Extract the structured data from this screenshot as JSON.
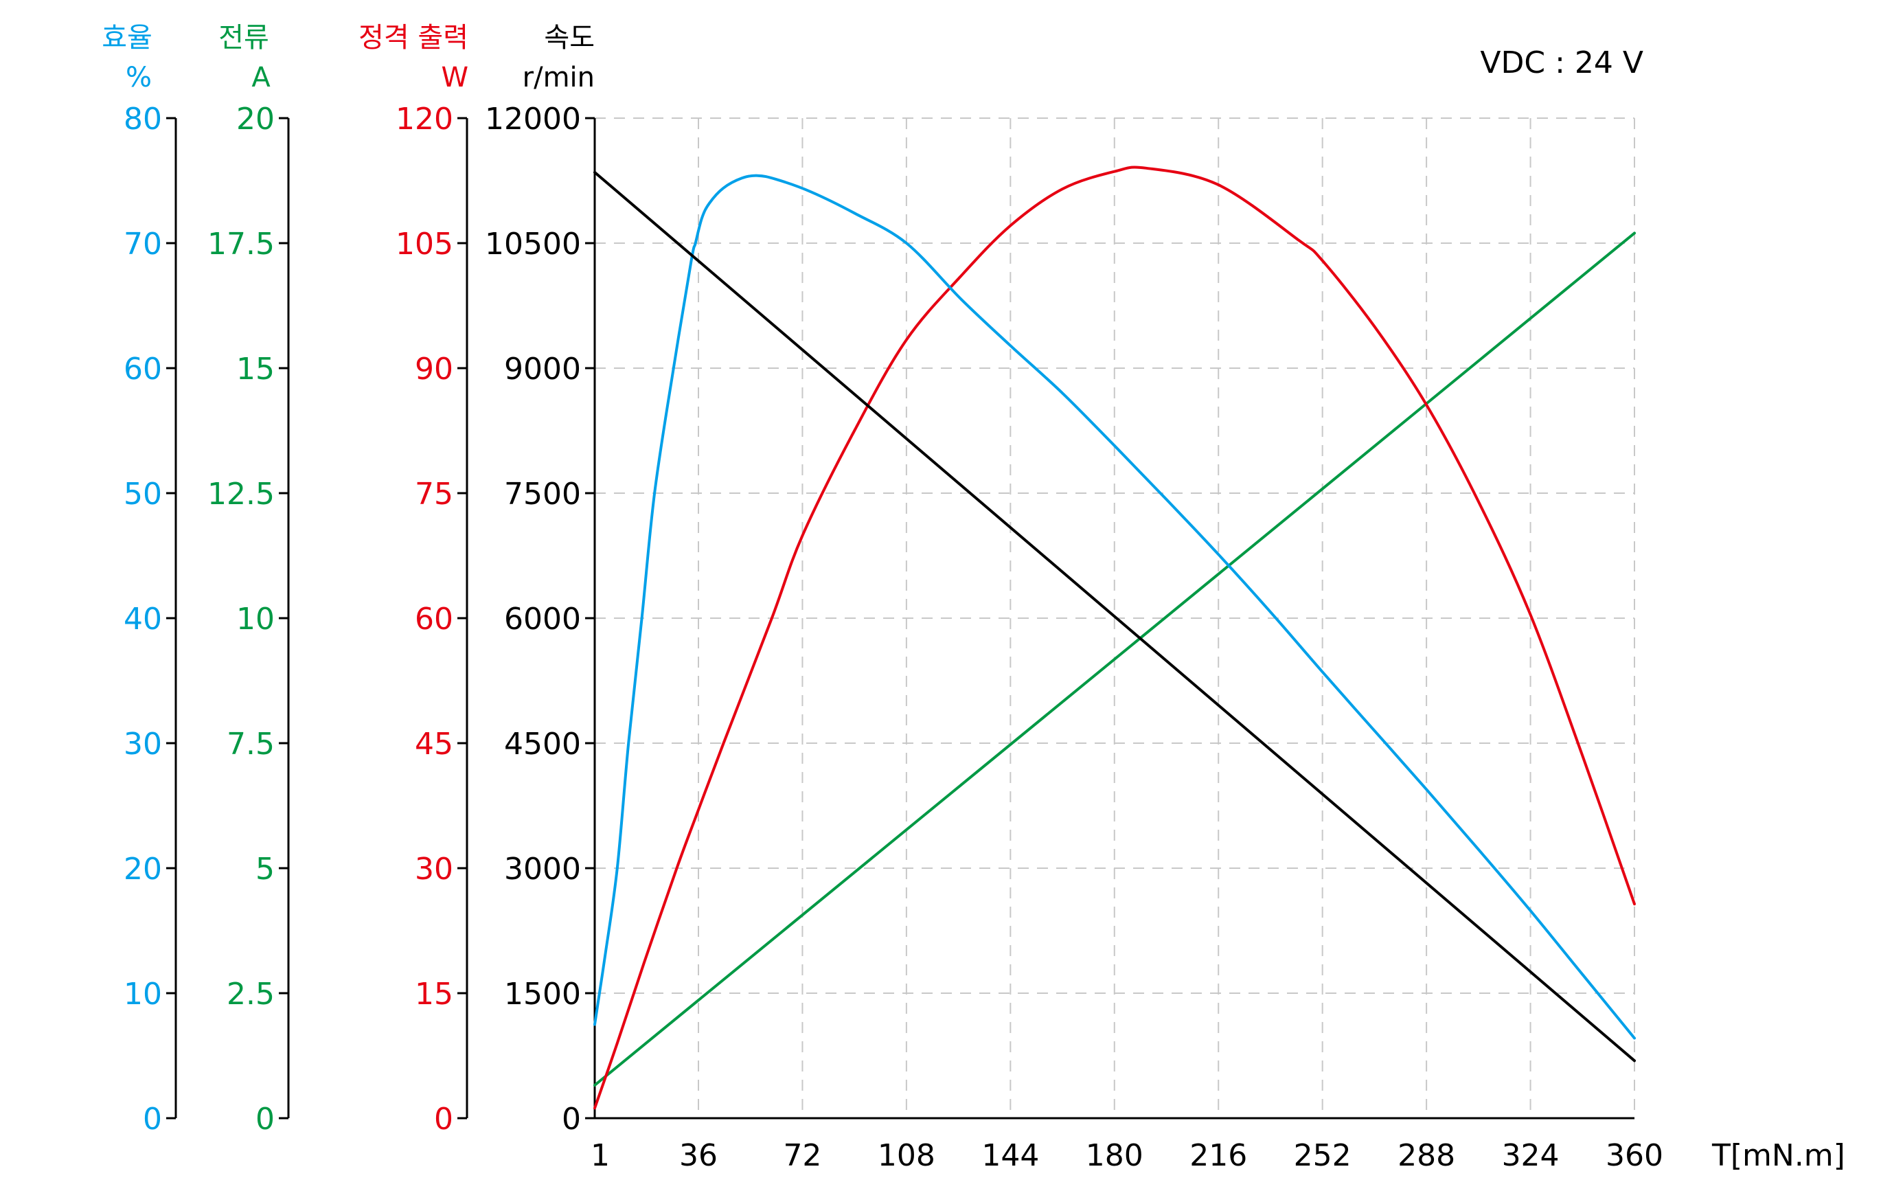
{
  "note": "VDC : 24 V",
  "axes": {
    "efficiency": {
      "title": "효율",
      "unit": "%",
      "color": "#00a0e9",
      "ticks": [
        "0",
        "10",
        "20",
        "30",
        "40",
        "50",
        "60",
        "70",
        "80"
      ],
      "min": 0,
      "max": 80
    },
    "current": {
      "title": "전류",
      "unit": "A",
      "color": "#009944",
      "ticks": [
        "0",
        "2.5",
        "5",
        "7.5",
        "10",
        "12.5",
        "15",
        "17.5",
        "20"
      ],
      "min": 0,
      "max": 20
    },
    "power": {
      "title": "정격 출력",
      "unit": "W",
      "color": "#e60012",
      "ticks": [
        "0",
        "15",
        "30",
        "45",
        "60",
        "75",
        "90",
        "105",
        "120"
      ],
      "min": 0,
      "max": 120
    },
    "speed": {
      "title": "속도",
      "unit": "r/min",
      "color": "#000000",
      "ticks": [
        "0",
        "1500",
        "3000",
        "4500",
        "6000",
        "7500",
        "9000",
        "10500",
        "12000"
      ],
      "min": 0,
      "max": 12000
    },
    "torque": {
      "title": "T[mN.m]",
      "ticks": [
        "1",
        "36",
        "72",
        "108",
        "144",
        "180",
        "216",
        "252",
        "288",
        "324",
        "360"
      ],
      "min": 1,
      "max": 360
    }
  },
  "chart_data": {
    "type": "line",
    "title": "",
    "annotation": "VDC : 24 V",
    "xlabel": "T[mN.m]",
    "xlim": [
      1,
      360
    ],
    "xticks": [
      1,
      36,
      72,
      108,
      144,
      180,
      216,
      252,
      288,
      324,
      360
    ],
    "grid": true,
    "legend": "none (multi-axis, colored by series)",
    "y_axes": [
      {
        "name": "효율",
        "unit": "%",
        "color": "#00a0e9",
        "ylim": [
          0,
          80
        ],
        "ticks": [
          0,
          10,
          20,
          30,
          40,
          50,
          60,
          70,
          80
        ]
      },
      {
        "name": "전류",
        "unit": "A",
        "color": "#009944",
        "ylim": [
          0,
          20
        ],
        "ticks": [
          0,
          2.5,
          5,
          7.5,
          10,
          12.5,
          15,
          17.5,
          20
        ]
      },
      {
        "name": "정격 출력",
        "unit": "W",
        "color": "#e60012",
        "ylim": [
          0,
          120
        ],
        "ticks": [
          0,
          15,
          30,
          45,
          60,
          75,
          90,
          105,
          120
        ]
      },
      {
        "name": "속도",
        "unit": "r/min",
        "color": "#000000",
        "ylim": [
          0,
          12000
        ],
        "ticks": [
          0,
          1500,
          3000,
          4500,
          6000,
          7500,
          9000,
          10500,
          12000
        ]
      }
    ],
    "series": [
      {
        "name": "속도",
        "axis": "speed",
        "unit": "r/min",
        "color": "#000000",
        "points": [
          [
            1,
            11350
          ],
          [
            360,
            690
          ]
        ]
      },
      {
        "name": "전류",
        "axis": "current",
        "unit": "A",
        "color": "#009944",
        "points": [
          [
            1,
            0.66
          ],
          [
            360,
            17.7
          ]
        ]
      },
      {
        "name": "정격 출력",
        "axis": "power",
        "unit": "W",
        "color": "#e60012",
        "points": [
          [
            1,
            1.2
          ],
          [
            8.6,
            9
          ],
          [
            18,
            19
          ],
          [
            28.7,
            30
          ],
          [
            36,
            37
          ],
          [
            44.7,
            45
          ],
          [
            61.4,
            60
          ],
          [
            72,
            69.9
          ],
          [
            90,
            82.5
          ],
          [
            108,
            93.4
          ],
          [
            127,
            101.1
          ],
          [
            144,
            107.1
          ],
          [
            162,
            111.5
          ],
          [
            180,
            113.6
          ],
          [
            191,
            114
          ],
          [
            216,
            112
          ],
          [
            244,
            105.3
          ],
          [
            252,
            102.9
          ],
          [
            270,
            95
          ],
          [
            288,
            85.6
          ],
          [
            306,
            74
          ],
          [
            324,
            60.4
          ],
          [
            342,
            43.5
          ],
          [
            360,
            25.7
          ]
        ]
      },
      {
        "name": "효율",
        "axis": "efficiency",
        "unit": "%",
        "color": "#00a0e9",
        "points": [
          [
            1,
            7.5
          ],
          [
            4.5,
            13
          ],
          [
            8.6,
            20
          ],
          [
            12.4,
            30
          ],
          [
            16.9,
            40
          ],
          [
            21.2,
            50
          ],
          [
            27.6,
            60
          ],
          [
            33.6,
            68.6
          ],
          [
            35,
            70
          ],
          [
            37.2,
            72
          ],
          [
            39.8,
            73.2
          ],
          [
            44.6,
            74.4
          ],
          [
            51,
            75.2
          ],
          [
            56.5,
            75.4
          ],
          [
            63,
            75.1
          ],
          [
            75,
            74.1
          ],
          [
            90,
            72.4
          ],
          [
            108,
            70
          ],
          [
            127,
            65.5
          ],
          [
            144,
            61.8
          ],
          [
            162,
            58
          ],
          [
            180,
            53.8
          ],
          [
            198,
            49.5
          ],
          [
            216,
            45.1
          ],
          [
            234,
            40.5
          ],
          [
            252,
            35.7
          ],
          [
            270,
            31
          ],
          [
            288,
            26.3
          ],
          [
            306,
            21.5
          ],
          [
            324,
            16.6
          ],
          [
            342,
            11.5
          ],
          [
            360,
            6.4
          ]
        ]
      }
    ]
  }
}
